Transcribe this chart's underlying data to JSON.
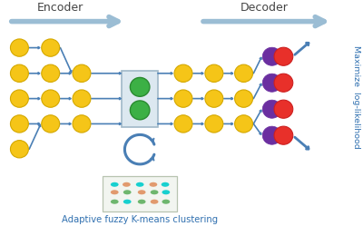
{
  "bg_color": "#ffffff",
  "encoder_label": "Encoder",
  "decoder_label": "Decoder",
  "maximize_label": "Maximize  log-likelihood",
  "clustering_label": "Adaptive fuzzy K-means clustering",
  "arrow_color": "#4a7fb5",
  "gold_color": "#f5c518",
  "gold_outline": "#d4a800",
  "green_color": "#3cb045",
  "green_outline": "#2a8a30",
  "red_color": "#e8302a",
  "purple_color": "#6b2fa0",
  "header_arrow_color": "#9bbdd4",
  "figsize": [
    4.0,
    2.6
  ],
  "dpi": 100
}
